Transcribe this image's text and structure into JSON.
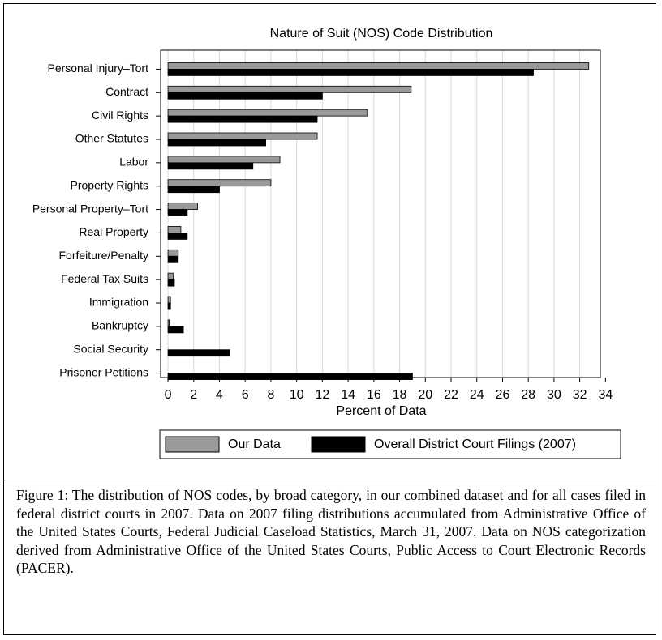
{
  "chart_data": {
    "type": "bar",
    "orientation": "horizontal",
    "title": "Nature of Suit (NOS) Code Distribution",
    "x_label": "Percent of Data",
    "categories": [
      "Personal Injury–Tort",
      "Contract",
      "Civil Rights",
      "Other Statutes",
      "Labor",
      "Property Rights",
      "Personal Property–Tort",
      "Real Property",
      "Forfeiture/Penalty",
      "Federal Tax Suits",
      "Immigration",
      "Bankruptcy",
      "Social Security",
      "Prisoner Petitions"
    ],
    "series": [
      {
        "name": "Our Data",
        "color": "#999999",
        "values": [
          32.7,
          18.9,
          15.5,
          11.6,
          8.7,
          8.0,
          2.3,
          1.0,
          0.8,
          0.4,
          0.2,
          0.1,
          0,
          0
        ]
      },
      {
        "name": "Overall District Court Filings (2007)",
        "color": "#000000",
        "values": [
          28.4,
          12.0,
          11.6,
          7.6,
          6.6,
          4.0,
          1.5,
          1.5,
          0.8,
          0.5,
          0.2,
          1.2,
          4.8,
          19.0
        ]
      }
    ],
    "xlim": [
      -0.57,
      33.6
    ],
    "xticks": [
      0,
      2,
      4,
      6,
      8,
      10,
      12,
      14,
      16,
      18,
      20,
      22,
      24,
      26,
      28,
      30,
      32,
      34
    ],
    "grid": true,
    "legend": "bottom"
  },
  "caption": "Figure 1: The distribution of NOS codes, by broad category, in our combined dataset and for all cases filed in federal district courts in 2007. Data on 2007 filing distributions accumulated from Administrative Office of the United States Courts, Federal Judicial Caseload Statistics, March 31, 2007. Data on NOS categorization derived from Administrative Office of the United States Courts, Public Access to Court Electronic Records (PACER)."
}
